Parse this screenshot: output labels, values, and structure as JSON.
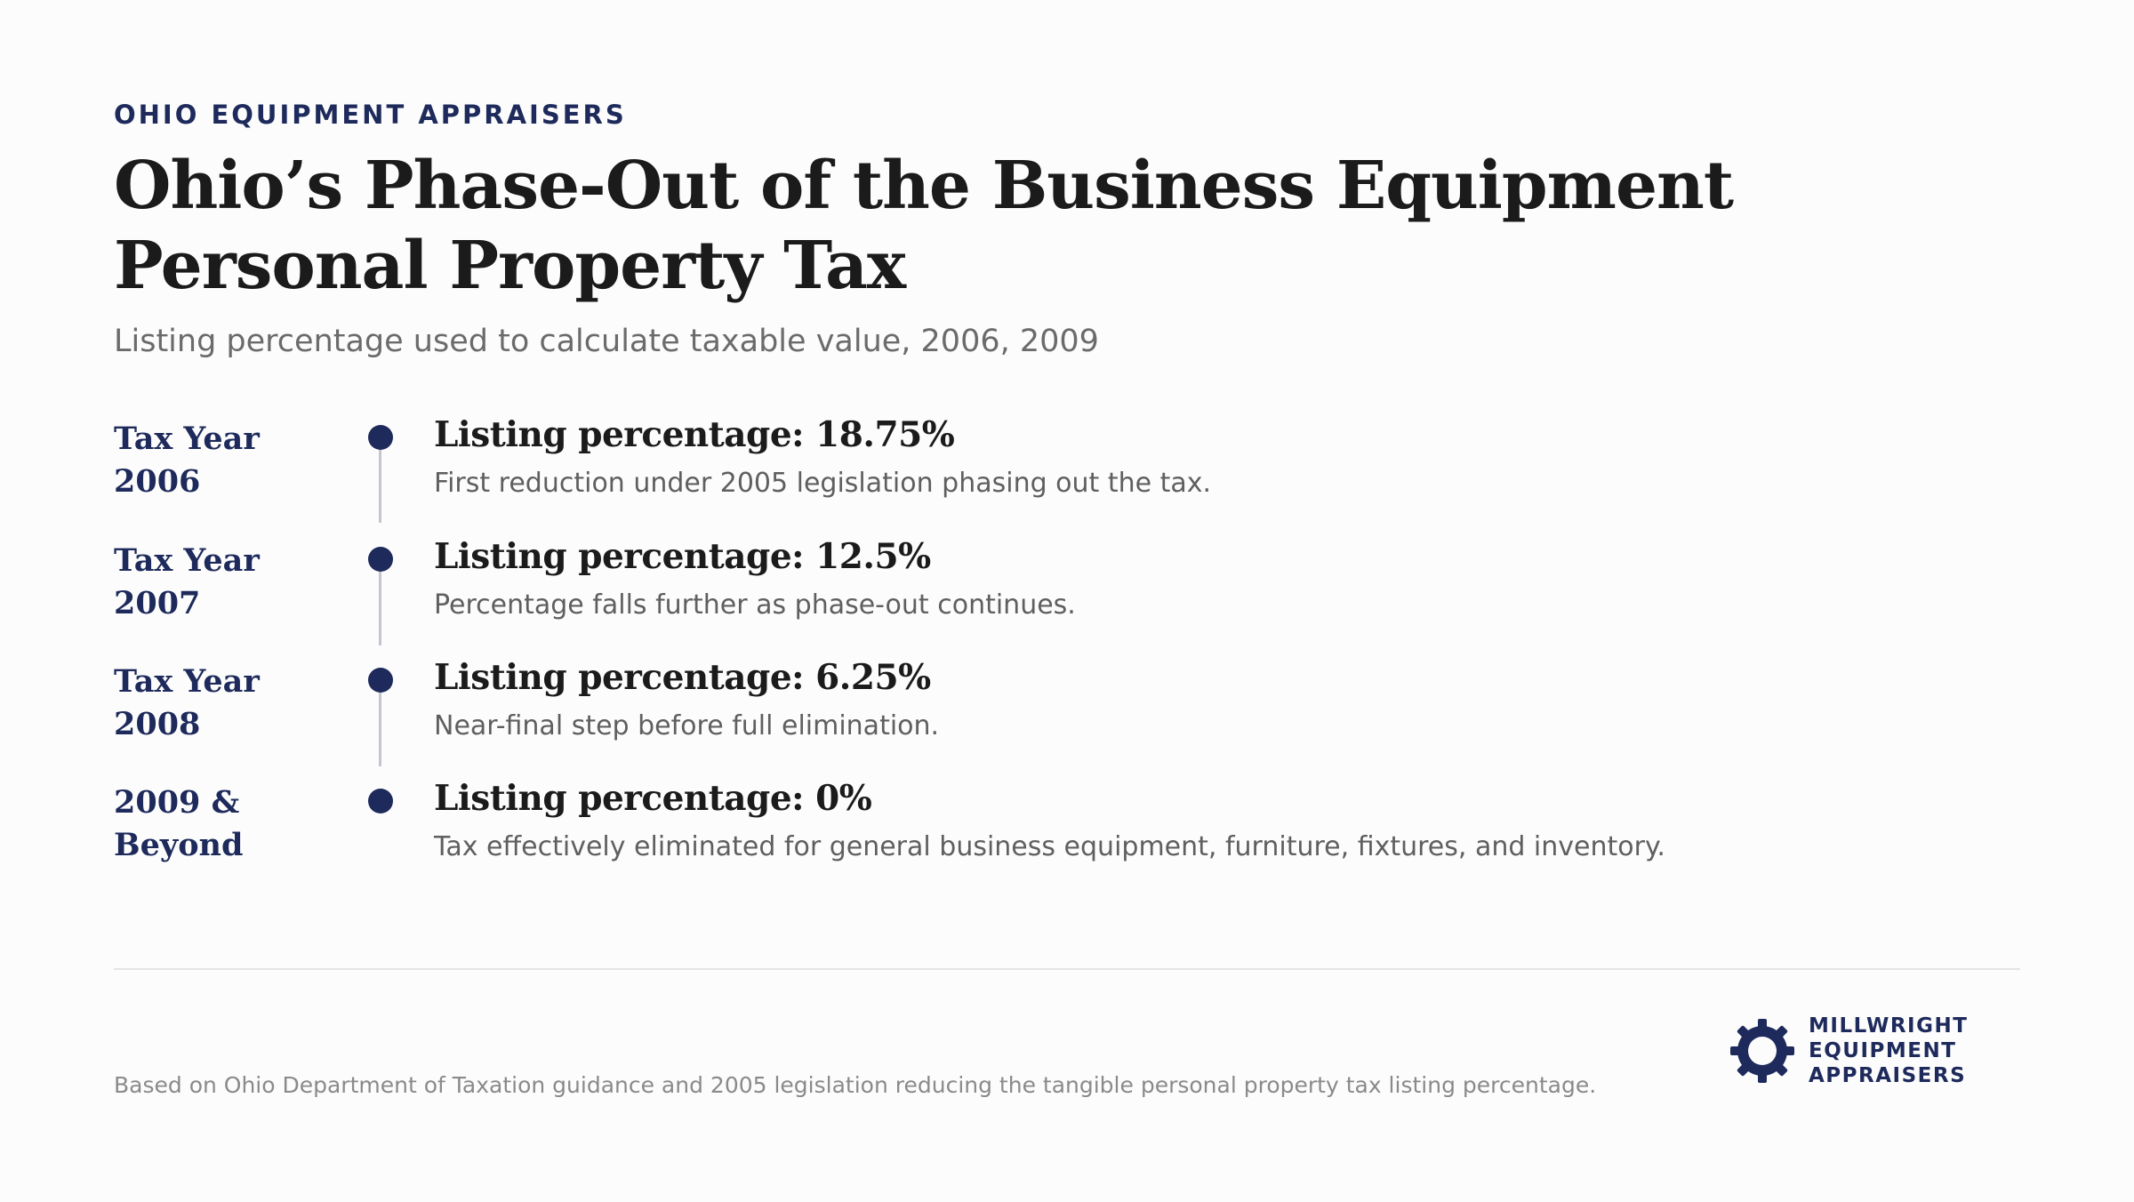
{
  "header": {
    "eyebrow": "OHIO EQUIPMENT APPRAISERS",
    "title": "Ohio’s Phase-Out of the Business Equipment Personal Property Tax",
    "subtitle": "Listing percentage used to calculate taxable value, 2006, 2009"
  },
  "timeline": {
    "items": [
      {
        "year_line1": "Tax Year",
        "year_line2": "2006",
        "heading": "Listing percentage: 18.75%",
        "description": "First reduction under 2005 legislation phasing out the tax."
      },
      {
        "year_line1": "Tax Year",
        "year_line2": "2007",
        "heading": "Listing percentage: 12.5%",
        "description": "Percentage falls further as phase-out continues."
      },
      {
        "year_line1": "Tax Year",
        "year_line2": "2008",
        "heading": "Listing percentage: 6.25%",
        "description": "Near-final step before full elimination."
      },
      {
        "year_line1": "2009 &",
        "year_line2": "Beyond",
        "heading": "Listing percentage: 0%",
        "description": "Tax effectively eliminated for general business equipment, furniture, fixtures, and inventory."
      }
    ]
  },
  "footer": {
    "footnote": "Based on Ohio Department of Taxation guidance and 2005 legislation reducing the tangible personal property tax listing percentage.",
    "logo": {
      "icon": "gear-icon",
      "line1": "MILLWRIGHT",
      "line2": "EQUIPMENT",
      "line3": "APPRAISERS"
    }
  },
  "colors": {
    "accent": "#1d2a5b",
    "connector": "#c3c6cf",
    "background": "#fcfcfc"
  }
}
